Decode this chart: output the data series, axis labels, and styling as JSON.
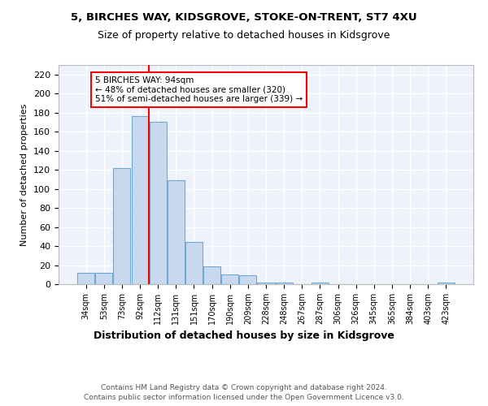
{
  "title1": "5, BIRCHES WAY, KIDSGROVE, STOKE-ON-TRENT, ST7 4XU",
  "title2": "Size of property relative to detached houses in Kidsgrove",
  "xlabel": "Distribution of detached houses by size in Kidsgrove",
  "ylabel": "Number of detached properties",
  "categories": [
    "34sqm",
    "53sqm",
    "73sqm",
    "92sqm",
    "112sqm",
    "131sqm",
    "151sqm",
    "170sqm",
    "190sqm",
    "209sqm",
    "228sqm",
    "248sqm",
    "267sqm",
    "287sqm",
    "306sqm",
    "326sqm",
    "345sqm",
    "365sqm",
    "384sqm",
    "403sqm",
    "423sqm"
  ],
  "values": [
    12,
    12,
    122,
    176,
    170,
    109,
    44,
    19,
    10,
    9,
    2,
    2,
    0,
    2,
    0,
    0,
    0,
    0,
    0,
    0,
    2
  ],
  "bar_color": "#c8d9ef",
  "bar_edgecolor": "#6fa8d5",
  "vline_index": 3,
  "vline_color": "red",
  "annotation_title": "5 BIRCHES WAY: 94sqm",
  "annotation_line1": "← 48% of detached houses are smaller (320)",
  "annotation_line2": "51% of semi-detached houses are larger (339) →",
  "annotation_box_color": "white",
  "annotation_box_edgecolor": "red",
  "footnote1": "Contains HM Land Registry data © Crown copyright and database right 2024.",
  "footnote2": "Contains public sector information licensed under the Open Government Licence v3.0.",
  "background_color": "#eef2fa",
  "ylim": [
    0,
    230
  ],
  "yticks": [
    0,
    20,
    40,
    60,
    80,
    100,
    120,
    140,
    160,
    180,
    200,
    220
  ]
}
